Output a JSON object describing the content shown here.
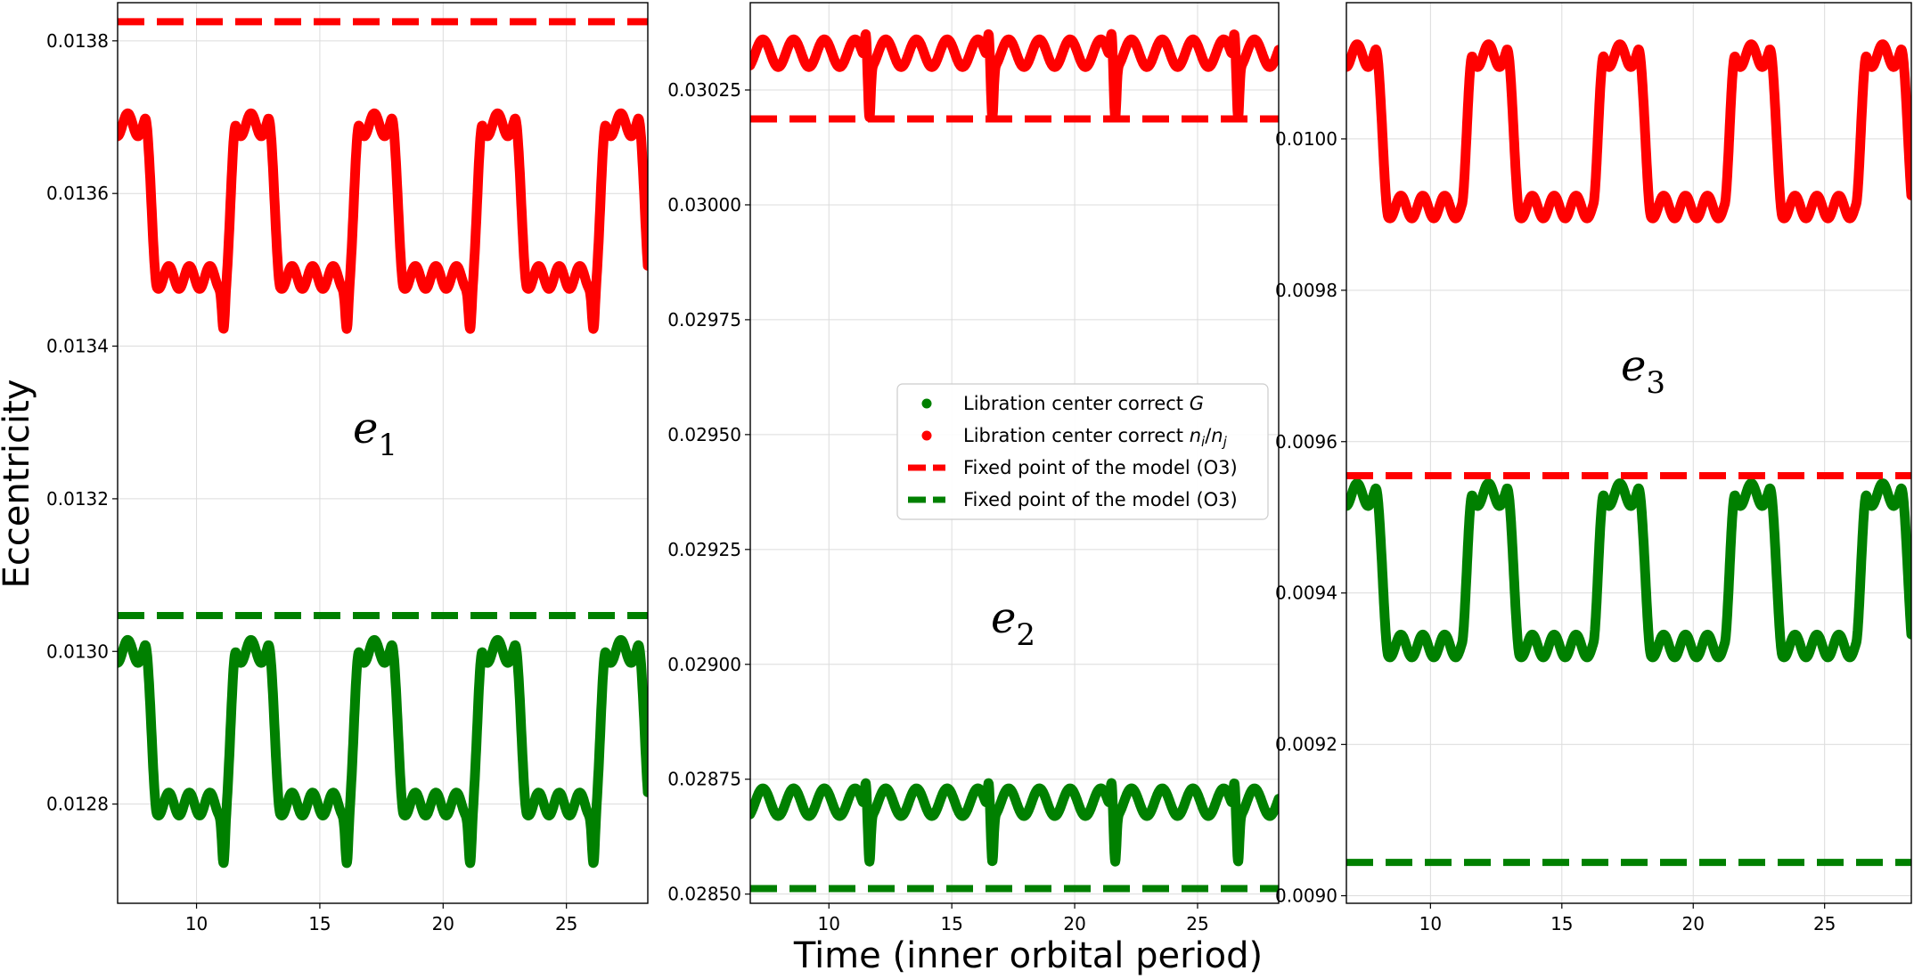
{
  "figure": {
    "xlabel": "Time (inner orbital period)",
    "ylabel": "Eccentricity"
  },
  "legend": {
    "entries": [
      {
        "label": "Libration center correct ",
        "math": "G",
        "color": "#008000",
        "marker": "dot"
      },
      {
        "label": "Libration center correct ",
        "math": "n_i/n_j",
        "color": "#ff0000",
        "marker": "dot"
      },
      {
        "label": "Fixed point of the model (O3)",
        "color": "#ff0000",
        "marker": "dash"
      },
      {
        "label": "Fixed point of the model (O3)",
        "color": "#008000",
        "marker": "dash"
      }
    ]
  },
  "chart_data": [
    {
      "type": "line",
      "panel_label": "e_1",
      "xlabel": "",
      "ylabel": "Eccentricity",
      "xlim": [
        6.8,
        28.3
      ],
      "ylim": [
        0.01267,
        0.01385
      ],
      "xticks": [
        10,
        15,
        20,
        25
      ],
      "xtick_labels": [
        "10",
        "15",
        "20",
        "25"
      ],
      "yticks": [
        0.0128,
        0.013,
        0.0132,
        0.0134,
        0.0136,
        0.0138
      ],
      "ytick_labels": [
        "0.0128",
        "0.0130",
        "0.0132",
        "0.0134",
        "0.0136",
        "0.0138"
      ],
      "grid": true,
      "series": [
        {
          "name": "Libration center correct n_i/n_j",
          "color": "#ff0000",
          "style": "thick-line",
          "period": 5,
          "phase": 7.0,
          "high": 0.01369,
          "low": 0.01349,
          "dip": 0.01343,
          "wiggle": 1.5e-05
        },
        {
          "name": "Libration center correct G",
          "color": "#008000",
          "style": "thick-line",
          "period": 5,
          "phase": 7.0,
          "high": 0.013,
          "low": 0.0128,
          "dip": 0.01273,
          "wiggle": 1.5e-05
        },
        {
          "name": "Fixed point of the model (O3)",
          "color": "#ff0000",
          "style": "dashed",
          "value": 0.013825
        },
        {
          "name": "Fixed point of the model (O3)",
          "color": "#008000",
          "style": "dashed",
          "value": 0.013047
        }
      ]
    },
    {
      "type": "line",
      "panel_label": "e_2",
      "xlabel": "Time (inner orbital period)",
      "ylabel": "",
      "xlim": [
        6.8,
        28.3
      ],
      "ylim": [
        0.02848,
        0.03044
      ],
      "xticks": [
        10,
        15,
        20,
        25
      ],
      "xtick_labels": [
        "10",
        "15",
        "20",
        "25"
      ],
      "yticks": [
        0.0285,
        0.02875,
        0.029,
        0.02925,
        0.0295,
        0.02975,
        0.03,
        0.03025
      ],
      "ytick_labels": [
        "0.02850",
        "0.02875",
        "0.02900",
        "0.02925",
        "0.02950",
        "0.02975",
        "0.03000",
        "0.03025"
      ],
      "grid": true,
      "series": [
        {
          "name": "Libration center correct n_i/n_j",
          "color": "#ff0000",
          "style": "thick-line",
          "period": 5,
          "phase": 7.0,
          "mean": 0.03033,
          "amp": 3e-05,
          "spike_up": 0.03039,
          "spike_down": 0.03022
        },
        {
          "name": "Libration center correct G",
          "color": "#008000",
          "style": "thick-line",
          "period": 5,
          "phase": 7.0,
          "mean": 0.0287,
          "amp": 3e-05,
          "spike_up": 0.02876,
          "spike_down": 0.0286
        },
        {
          "name": "Fixed point of the model (O3)",
          "color": "#ff0000",
          "style": "dashed",
          "value": 0.030187
        },
        {
          "name": "Fixed point of the model (O3)",
          "color": "#008000",
          "style": "dashed",
          "value": 0.028512
        }
      ]
    },
    {
      "type": "line",
      "panel_label": "e_3",
      "xlabel": "",
      "ylabel": "",
      "xlim": [
        6.8,
        28.3
      ],
      "ylim": [
        0.00899,
        0.01018
      ],
      "xticks": [
        10,
        15,
        20,
        25
      ],
      "xtick_labels": [
        "10",
        "15",
        "20",
        "25"
      ],
      "yticks": [
        0.009,
        0.0092,
        0.0094,
        0.0096,
        0.0098,
        0.01
      ],
      "ytick_labels": [
        "0.0090",
        "0.0092",
        "0.0094",
        "0.0096",
        "0.0098",
        "0.0100"
      ],
      "grid": true,
      "series": [
        {
          "name": "Libration center correct n_i/n_j",
          "color": "#ff0000",
          "style": "thick-line",
          "period": 5,
          "phase": 7.0,
          "high": 0.01011,
          "low": 0.00991,
          "wiggle": 1.5e-05
        },
        {
          "name": "Libration center correct G",
          "color": "#008000",
          "style": "thick-line",
          "period": 5,
          "phase": 7.0,
          "high": 0.00953,
          "low": 0.00933,
          "wiggle": 1.5e-05
        },
        {
          "name": "Fixed point of the model (O3)",
          "color": "#ff0000",
          "style": "dashed",
          "value": 0.009555
        },
        {
          "name": "Fixed point of the model (O3)",
          "color": "#008000",
          "style": "dashed",
          "value": 0.009044
        }
      ]
    }
  ]
}
